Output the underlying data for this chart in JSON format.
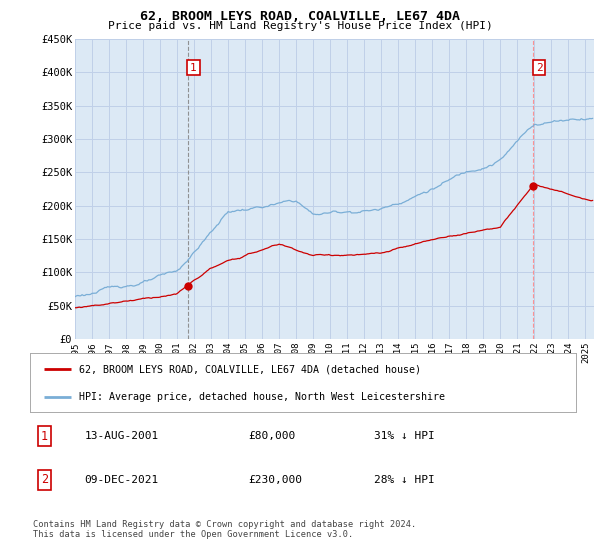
{
  "title": "62, BROOM LEYS ROAD, COALVILLE, LE67 4DA",
  "subtitle": "Price paid vs. HM Land Registry's House Price Index (HPI)",
  "ylim": [
    0,
    450000
  ],
  "yticks": [
    0,
    50000,
    100000,
    150000,
    200000,
    250000,
    300000,
    350000,
    400000,
    450000
  ],
  "ytick_labels": [
    "£0",
    "£50K",
    "£100K",
    "£150K",
    "£200K",
    "£250K",
    "£300K",
    "£350K",
    "£400K",
    "£450K"
  ],
  "hpi_color": "#7aaed6",
  "price_color": "#cc0000",
  "vline1_color": "#888888",
  "vline2_color": "#ff8888",
  "plot_bg_color": "#dce9f5",
  "transaction1": {
    "date": "13-AUG-2001",
    "price": 80000,
    "year": 2001.62,
    "label": "1",
    "pct": "31% ↓ HPI"
  },
  "transaction2": {
    "date": "09-DEC-2021",
    "price": 230000,
    "year": 2021.92,
    "label": "2",
    "pct": "28% ↓ HPI"
  },
  "legend1": "62, BROOM LEYS ROAD, COALVILLE, LE67 4DA (detached house)",
  "legend2": "HPI: Average price, detached house, North West Leicestershire",
  "footer": "Contains HM Land Registry data © Crown copyright and database right 2024.\nThis data is licensed under the Open Government Licence v3.0.",
  "background_color": "#ffffff",
  "grid_color": "#c0d0e8",
  "xlim_start": 1995,
  "xlim_end": 2025.5
}
